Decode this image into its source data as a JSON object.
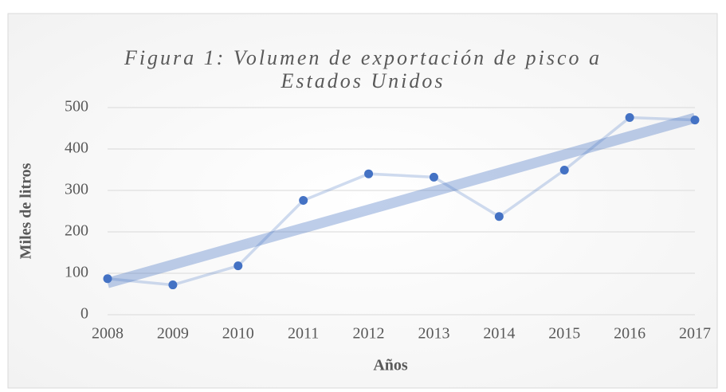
{
  "chart_data": {
    "type": "line",
    "title": "Figura 1: Volumen de exportación de pisco a Estados Unidos",
    "x_label": "Años",
    "y_label": "Miles de litros",
    "x": [
      2008,
      2009,
      2010,
      2011,
      2012,
      2013,
      2014,
      2015,
      2016,
      2017
    ],
    "series": [
      {
        "color": "#4472c4",
        "values": [
          87,
          72,
          118,
          276,
          340,
          332,
          237,
          349,
          476,
          470
        ]
      }
    ],
    "trendline": "linear",
    "xlim": [
      2008,
      2017
    ],
    "xticks": [
      2008,
      2009,
      2010,
      2011,
      2012,
      2013,
      2014,
      2015,
      2016,
      2017
    ],
    "ylim": [
      0,
      500
    ],
    "yticks": [
      0,
      100,
      200,
      300,
      400,
      500
    ],
    "grid": true
  }
}
